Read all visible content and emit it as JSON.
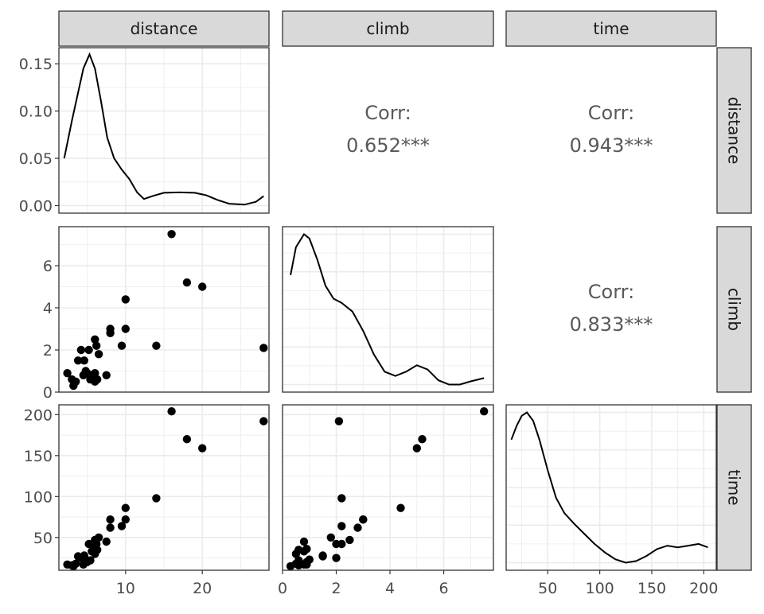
{
  "chart_data": {
    "type": "scatter",
    "variables": [
      "distance",
      "climb",
      "time"
    ],
    "strip_labels": {
      "top": [
        "distance",
        "climb",
        "time"
      ],
      "right": [
        "distance",
        "climb",
        "time"
      ]
    },
    "axes": {
      "distance": {
        "range": [
          1.3,
          28.7
        ],
        "ticks": [
          10,
          20
        ],
        "tick_labels": [
          "10",
          "20"
        ]
      },
      "climb": {
        "range": [
          0.0,
          7.85
        ],
        "ticks": [
          0,
          2,
          4,
          6
        ],
        "tick_labels": [
          "0",
          "2",
          "4",
          "6"
        ]
      },
      "time": {
        "range": [
          10,
          212
        ],
        "ticks": [
          50,
          100,
          150,
          200
        ],
        "tick_labels": [
          "50",
          "100",
          "150",
          "200"
        ]
      }
    },
    "density_y_axis": {
      "range": [
        -0.008,
        0.167
      ],
      "ticks": [
        0.0,
        0.05,
        0.1,
        0.15
      ],
      "tick_labels": [
        "0.00",
        "0.05",
        "0.10",
        "0.15"
      ]
    },
    "correlations": [
      {
        "row": 0,
        "col": 1,
        "label": "Corr:",
        "value": "0.652***"
      },
      {
        "row": 0,
        "col": 2,
        "label": "Corr:",
        "value": "0.943***"
      },
      {
        "row": 1,
        "col": 2,
        "label": "Corr:",
        "value": "0.833***"
      }
    ],
    "observations": [
      [
        2.4,
        0.9,
        17
      ],
      [
        3.0,
        0.6,
        16
      ],
      [
        3.2,
        0.3,
        15
      ],
      [
        3.5,
        0.5,
        18
      ],
      [
        3.8,
        1.5,
        27
      ],
      [
        4.2,
        2.0,
        25
      ],
      [
        4.5,
        0.8,
        17
      ],
      [
        4.6,
        1.5,
        28
      ],
      [
        4.8,
        1.0,
        23
      ],
      [
        5.0,
        0.9,
        20
      ],
      [
        5.2,
        2.0,
        42
      ],
      [
        5.4,
        0.6,
        22
      ],
      [
        5.6,
        0.8,
        33
      ],
      [
        6.0,
        0.5,
        30
      ],
      [
        6.0,
        0.9,
        36
      ],
      [
        6.2,
        2.2,
        42
      ],
      [
        6.0,
        2.5,
        47
      ],
      [
        6.3,
        0.6,
        35
      ],
      [
        6.5,
        1.8,
        50
      ],
      [
        7.5,
        0.8,
        45
      ],
      [
        8.0,
        2.8,
        62
      ],
      [
        8.0,
        3.0,
        72
      ],
      [
        9.5,
        2.2,
        64
      ],
      [
        10.0,
        3.0,
        72
      ],
      [
        10.0,
        4.4,
        86
      ],
      [
        14.0,
        2.2,
        98
      ],
      [
        16.0,
        7.5,
        204
      ],
      [
        18.0,
        5.2,
        170
      ],
      [
        20.0,
        5.0,
        159
      ],
      [
        28.0,
        2.1,
        192
      ]
    ],
    "density_curves": {
      "distance": [
        [
          2.0,
          0.05
        ],
        [
          3.0,
          0.09
        ],
        [
          4.5,
          0.145
        ],
        [
          5.3,
          0.16
        ],
        [
          6.0,
          0.145
        ],
        [
          6.8,
          0.11
        ],
        [
          7.6,
          0.072
        ],
        [
          8.5,
          0.05
        ],
        [
          9.5,
          0.038
        ],
        [
          10.5,
          0.028
        ],
        [
          11.5,
          0.014
        ],
        [
          12.4,
          0.007
        ],
        [
          13.5,
          0.01
        ],
        [
          15.0,
          0.0135
        ],
        [
          17.0,
          0.014
        ],
        [
          19.0,
          0.0135
        ],
        [
          20.5,
          0.011
        ],
        [
          22.0,
          0.006
        ],
        [
          23.5,
          0.002
        ],
        [
          25.5,
          0.001
        ],
        [
          27.0,
          0.004
        ],
        [
          28.0,
          0.01
        ]
      ],
      "climb": [
        [
          0.3,
          5.5
        ],
        [
          0.5,
          6.8
        ],
        [
          0.8,
          7.4
        ],
        [
          1.0,
          7.2
        ],
        [
          1.3,
          6.2
        ],
        [
          1.6,
          5.0
        ],
        [
          1.9,
          4.4
        ],
        [
          2.2,
          4.2
        ],
        [
          2.6,
          3.8
        ],
        [
          3.0,
          2.9
        ],
        [
          3.4,
          1.8
        ],
        [
          3.8,
          1.0
        ],
        [
          4.2,
          0.8
        ],
        [
          4.6,
          1.0
        ],
        [
          5.0,
          1.3
        ],
        [
          5.4,
          1.1
        ],
        [
          5.8,
          0.6
        ],
        [
          6.2,
          0.4
        ],
        [
          6.6,
          0.4
        ],
        [
          7.0,
          0.55
        ],
        [
          7.5,
          0.7
        ]
      ],
      "time": [
        [
          15,
          0.82
        ],
        [
          20,
          0.9
        ],
        [
          25,
          0.96
        ],
        [
          30,
          0.98
        ],
        [
          36,
          0.93
        ],
        [
          42,
          0.82
        ],
        [
          50,
          0.64
        ],
        [
          58,
          0.48
        ],
        [
          66,
          0.39
        ],
        [
          75,
          0.33
        ],
        [
          85,
          0.27
        ],
        [
          95,
          0.21
        ],
        [
          105,
          0.16
        ],
        [
          115,
          0.12
        ],
        [
          125,
          0.1
        ],
        [
          135,
          0.11
        ],
        [
          145,
          0.14
        ],
        [
          155,
          0.18
        ],
        [
          165,
          0.2
        ],
        [
          175,
          0.19
        ],
        [
          185,
          0.2
        ],
        [
          195,
          0.21
        ],
        [
          204,
          0.19
        ]
      ]
    }
  }
}
